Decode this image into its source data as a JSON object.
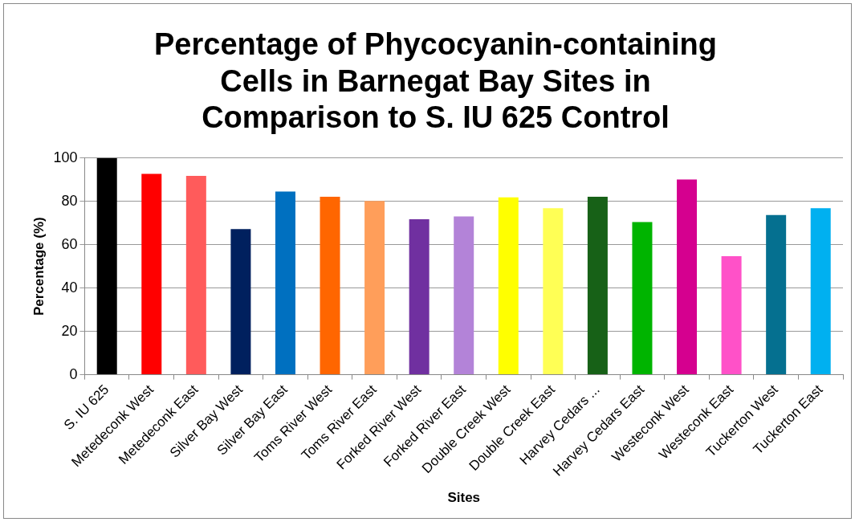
{
  "chart_data": {
    "type": "bar",
    "title": "Percentage of Phycocyanin-containing Cells in Barnegat Bay Sites in Comparison to S. IU 625 Control",
    "xlabel": "Sites",
    "ylabel": "Percentage (%)",
    "categories": [
      "S. IU 625",
      "Metedeconk West",
      "Metedeconk East",
      "Silver Bay West",
      "Silver Bay East",
      "Toms River West",
      "Toms River East",
      "Forked River West",
      "Forked River East",
      "Double Creek West",
      "Double Creek East",
      "Harvey Cedars ...",
      "Harvey Cedars East",
      "Westeconk West",
      "Westeconk East",
      "Tuckerton West",
      "Tuckerton East"
    ],
    "values": [
      100,
      92.7,
      91.8,
      67.2,
      84.5,
      82.1,
      80.2,
      71.8,
      73.1,
      81.9,
      76.9,
      82.1,
      70.5,
      90.1,
      54.7,
      73.7,
      76.9
    ],
    "colors": [
      "#000000",
      "#ff0000",
      "#ff5b5b",
      "#00205e",
      "#0070c0",
      "#ff6600",
      "#ff9e5a",
      "#7030a0",
      "#b383d8",
      "#ffff00",
      "#ffff55",
      "#176117",
      "#00b400",
      "#d5008f",
      "#ff51c8",
      "#057090",
      "#00b0f0"
    ],
    "ylim": [
      0,
      100
    ],
    "yticks": [
      0,
      20,
      40,
      60,
      80,
      100
    ],
    "grid": "y",
    "legend": false
  }
}
